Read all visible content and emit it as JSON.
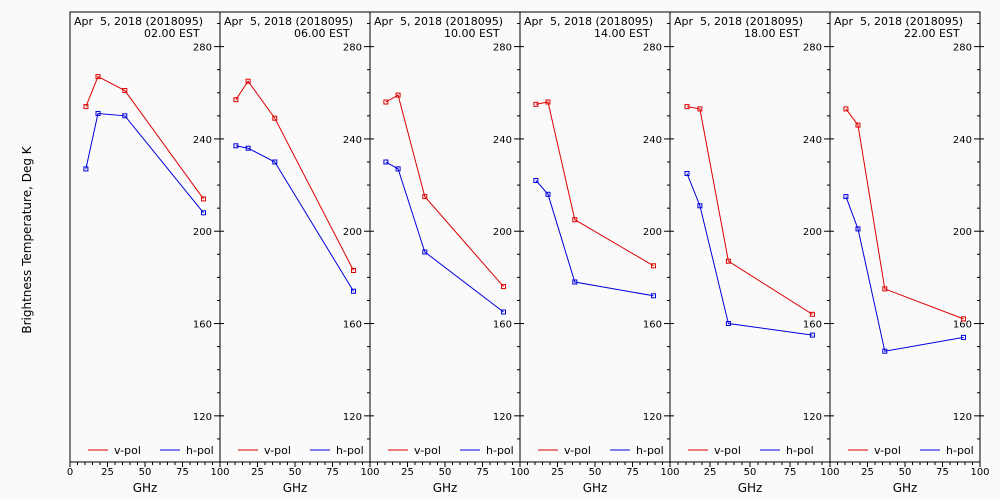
{
  "chart_data": {
    "type": "line",
    "ylabel": "Brightness Temperature, Deg K",
    "xlabel": "GHz",
    "xlim": [
      0,
      100
    ],
    "ylim": [
      100,
      295
    ],
    "x_ticks": [
      0,
      25,
      50,
      75,
      100
    ],
    "x_tick_labels_first": [
      "0",
      "25",
      "50",
      "75",
      "100"
    ],
    "x_tick_labels_other": [
      "",
      "25",
      "50",
      "75",
      "100"
    ],
    "y_ticks": [
      120,
      160,
      200,
      240,
      280
    ],
    "grid": false,
    "legend": [
      {
        "name": "v-pol",
        "color": "#dd0000"
      },
      {
        "name": "h-pol",
        "color": "#0000dd"
      }
    ],
    "panels": [
      {
        "title_line1": "Apr  5, 2018 (2018095)",
        "title_line2": "02.00 EST",
        "series": [
          {
            "name": "v-pol",
            "x": [
              10.6,
              18.7,
              36.5,
              89
            ],
            "y": [
              254,
              267,
              261,
              214
            ]
          },
          {
            "name": "h-pol",
            "x": [
              10.6,
              18.7,
              36.5,
              89
            ],
            "y": [
              227,
              251,
              250,
              208
            ]
          }
        ]
      },
      {
        "title_line1": "Apr  5, 2018 (2018095)",
        "title_line2": "06.00 EST",
        "series": [
          {
            "name": "v-pol",
            "x": [
              10.6,
              18.7,
              36.5,
              89
            ],
            "y": [
              257,
              265,
              249,
              183
            ]
          },
          {
            "name": "h-pol",
            "x": [
              10.6,
              18.7,
              36.5,
              89
            ],
            "y": [
              237,
              236,
              230,
              174
            ]
          }
        ]
      },
      {
        "title_line1": "Apr  5, 2018 (2018095)",
        "title_line2": "10.00 EST",
        "series": [
          {
            "name": "v-pol",
            "x": [
              10.6,
              18.7,
              36.5,
              89
            ],
            "y": [
              256,
              259,
              215,
              176
            ]
          },
          {
            "name": "h-pol",
            "x": [
              10.6,
              18.7,
              36.5,
              89
            ],
            "y": [
              230,
              227,
              191,
              165
            ]
          }
        ]
      },
      {
        "title_line1": "Apr  5, 2018 (2018095)",
        "title_line2": "14.00 EST",
        "series": [
          {
            "name": "v-pol",
            "x": [
              10.6,
              18.7,
              36.5,
              89
            ],
            "y": [
              255,
              256,
              205,
              185
            ]
          },
          {
            "name": "h-pol",
            "x": [
              10.6,
              18.7,
              36.5,
              89
            ],
            "y": [
              222,
              216,
              178,
              172
            ]
          }
        ]
      },
      {
        "title_line1": "Apr  5, 2018 (2018095)",
        "title_line2": "18.00 EST",
        "series": [
          {
            "name": "v-pol",
            "x": [
              10.6,
              18.7,
              36.5,
              89
            ],
            "y": [
              254,
              253,
              187,
              164
            ]
          },
          {
            "name": "h-pol",
            "x": [
              10.6,
              18.7,
              36.5,
              89
            ],
            "y": [
              225,
              211,
              160,
              155
            ]
          }
        ]
      },
      {
        "title_line1": "Apr  5, 2018 (2018095)",
        "title_line2": "22.00 EST",
        "series": [
          {
            "name": "v-pol",
            "x": [
              10.6,
              18.7,
              36.5,
              89
            ],
            "y": [
              253,
              246,
              175,
              162
            ]
          },
          {
            "name": "h-pol",
            "x": [
              10.6,
              18.7,
              36.5,
              89
            ],
            "y": [
              215,
              201,
              148,
              154
            ]
          }
        ]
      }
    ]
  }
}
